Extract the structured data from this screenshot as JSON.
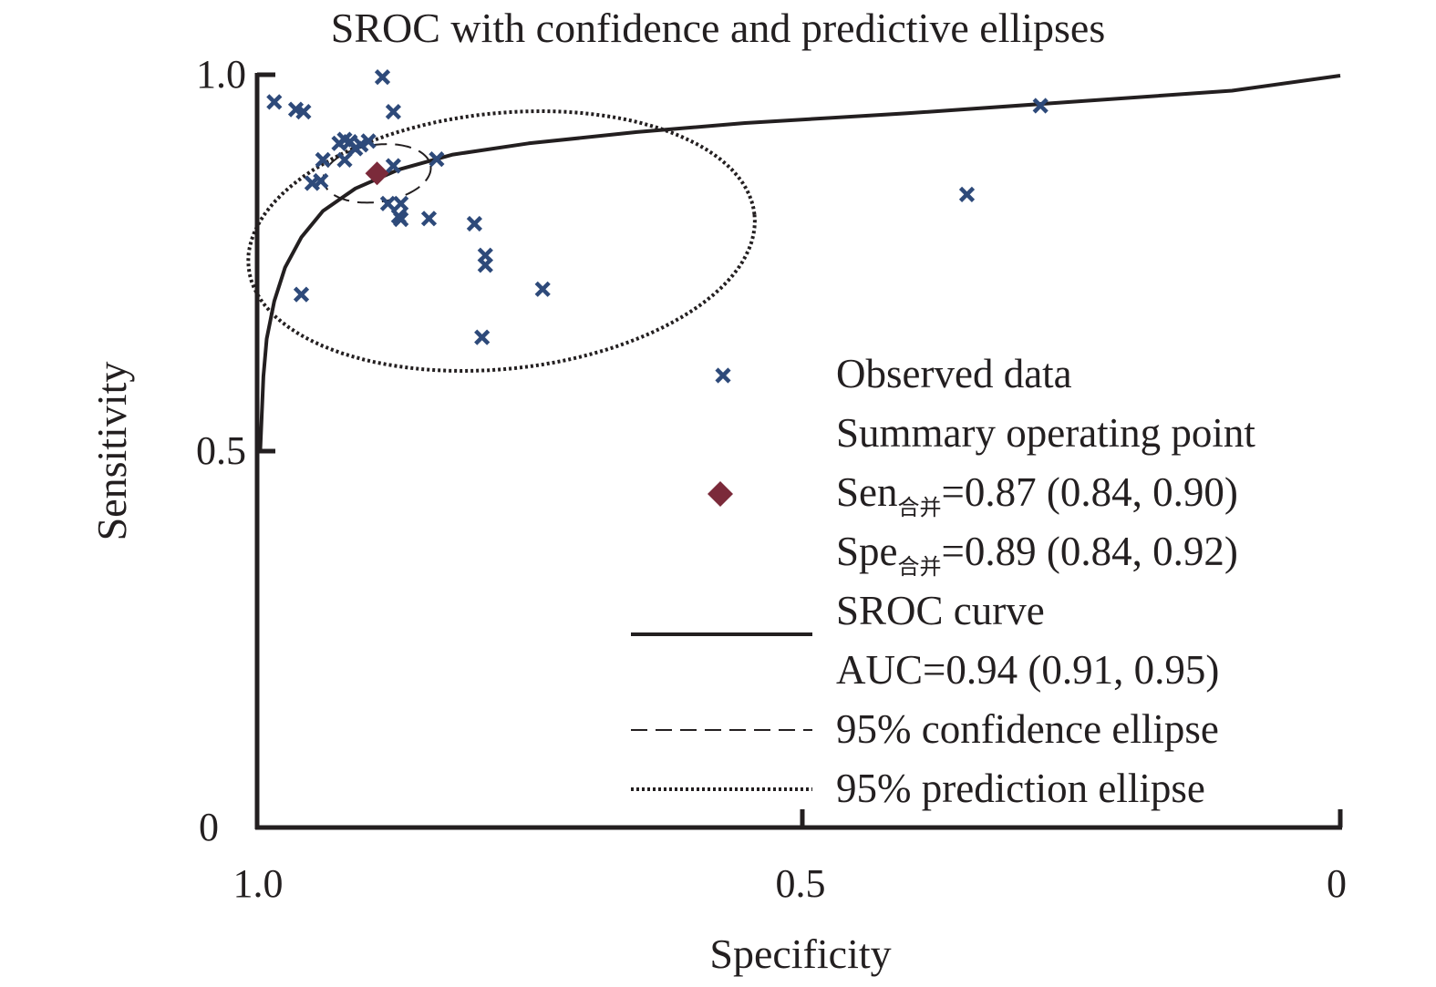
{
  "chart_data": {
    "type": "scatter",
    "title": "SROC with confidence and predictive ellipses",
    "xlabel": "Specificity",
    "ylabel": "Sensitivity",
    "x_axis_reversed": true,
    "xlim": [
      1.0,
      0
    ],
    "ylim": [
      0,
      1.0
    ],
    "x_ticks": [
      "1.0",
      "0.5",
      "0"
    ],
    "y_ticks": [
      "1.0",
      "0.5",
      "0"
    ],
    "grid": false,
    "legend_position": "bottom-right",
    "colors": {
      "observed": "#2e4a7a",
      "summary": "#7b2a3a",
      "lines": "#231f20"
    },
    "observed_data": {
      "name": "Observed data",
      "points": [
        {
          "x": 0.985,
          "y": 0.965
        },
        {
          "x": 0.965,
          "y": 0.955
        },
        {
          "x": 0.958,
          "y": 0.952
        },
        {
          "x": 0.885,
          "y": 0.998
        },
        {
          "x": 0.875,
          "y": 0.952
        },
        {
          "x": 0.95,
          "y": 0.857
        },
        {
          "x": 0.942,
          "y": 0.86
        },
        {
          "x": 0.94,
          "y": 0.888
        },
        {
          "x": 0.925,
          "y": 0.91
        },
        {
          "x": 0.92,
          "y": 0.915
        },
        {
          "x": 0.915,
          "y": 0.912
        },
        {
          "x": 0.91,
          "y": 0.903
        },
        {
          "x": 0.905,
          "y": 0.908
        },
        {
          "x": 0.898,
          "y": 0.913
        },
        {
          "x": 0.92,
          "y": 0.888
        },
        {
          "x": 0.875,
          "y": 0.88
        },
        {
          "x": 0.835,
          "y": 0.889
        },
        {
          "x": 0.88,
          "y": 0.83
        },
        {
          "x": 0.868,
          "y": 0.83
        },
        {
          "x": 0.87,
          "y": 0.813
        },
        {
          "x": 0.868,
          "y": 0.809
        },
        {
          "x": 0.842,
          "y": 0.81
        },
        {
          "x": 0.8,
          "y": 0.803
        },
        {
          "x": 0.79,
          "y": 0.761
        },
        {
          "x": 0.79,
          "y": 0.748
        },
        {
          "x": 0.737,
          "y": 0.716
        },
        {
          "x": 0.793,
          "y": 0.652
        },
        {
          "x": 0.96,
          "y": 0.709
        },
        {
          "x": 0.345,
          "y": 0.842
        },
        {
          "x": 0.277,
          "y": 0.96
        }
      ]
    },
    "summary_point": {
      "x": 0.89,
      "y": 0.87
    },
    "sroc_curve": [
      [
        0.998,
        0.5
      ],
      [
        0.995,
        0.6
      ],
      [
        0.992,
        0.65
      ],
      [
        0.985,
        0.7
      ],
      [
        0.975,
        0.745
      ],
      [
        0.96,
        0.785
      ],
      [
        0.94,
        0.82
      ],
      [
        0.91,
        0.85
      ],
      [
        0.87,
        0.875
      ],
      [
        0.82,
        0.895
      ],
      [
        0.75,
        0.91
      ],
      [
        0.65,
        0.925
      ],
      [
        0.55,
        0.937
      ],
      [
        0.4,
        0.95
      ],
      [
        0.25,
        0.965
      ],
      [
        0.1,
        0.98
      ],
      [
        0,
        1.0
      ]
    ],
    "confidence_ellipse": {
      "center": [
        0.89,
        0.87
      ],
      "rx": 0.05,
      "ry": 0.038,
      "rotation_deg": -8
    },
    "prediction_ellipse": {
      "center": [
        0.775,
        0.78
      ],
      "rx": 0.235,
      "ry": 0.17,
      "rotation_deg": -6
    },
    "legend": {
      "observed": "Observed data",
      "summary": "Summary operating point",
      "sen_prefix": "Sen",
      "sen_sub": "合并",
      "sen_value": "=0.87 (0.84, 0.90)",
      "spe_prefix": "Spe",
      "spe_sub": "合并",
      "spe_value": "=0.89 (0.84, 0.92)",
      "sroc": "SROC curve",
      "auc": "AUC=0.94 (0.91, 0.95)",
      "confidence": "95% confidence ellipse",
      "prediction": "95% prediction ellipse"
    }
  }
}
